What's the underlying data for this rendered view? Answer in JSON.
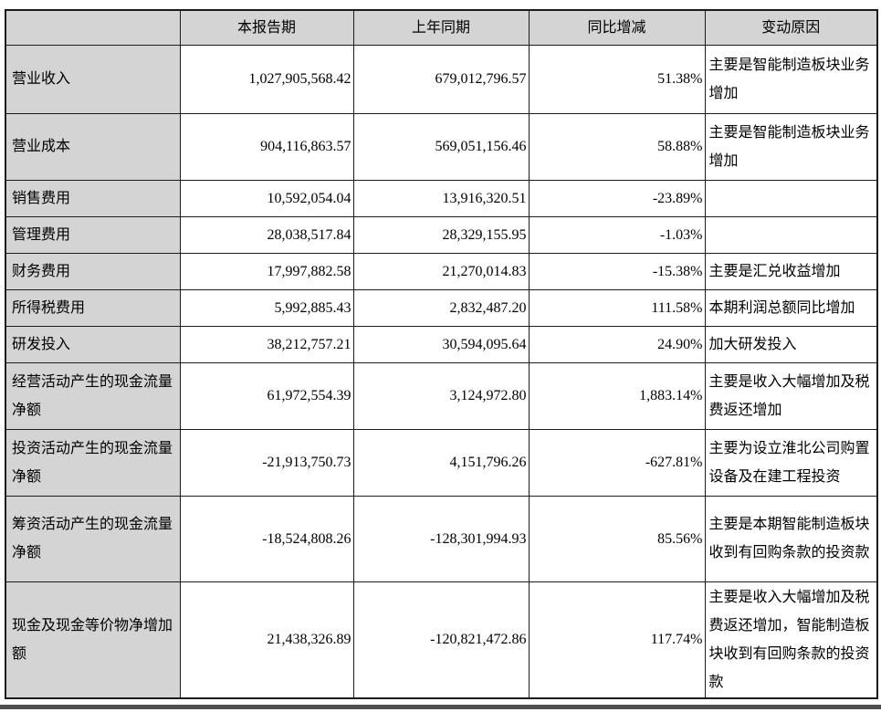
{
  "table": {
    "columns": [
      {
        "key": "label",
        "label": ""
      },
      {
        "key": "current",
        "label": "本报告期"
      },
      {
        "key": "prior",
        "label": "上年同期"
      },
      {
        "key": "change",
        "label": "同比增减"
      },
      {
        "key": "reason",
        "label": "变动原因"
      }
    ],
    "rows": [
      {
        "label": "营业收入",
        "current": "1,027,905,568.42",
        "prior": "679,012,796.57",
        "change": "51.38%",
        "reason": "主要是智能制造板块业务增加"
      },
      {
        "label": "营业成本",
        "current": "904,116,863.57",
        "prior": "569,051,156.46",
        "change": "58.88%",
        "reason": "主要是智能制造板块业务增加"
      },
      {
        "label": "销售费用",
        "current": "10,592,054.04",
        "prior": "13,916,320.51",
        "change": "-23.89%",
        "reason": ""
      },
      {
        "label": "管理费用",
        "current": "28,038,517.84",
        "prior": "28,329,155.95",
        "change": "-1.03%",
        "reason": ""
      },
      {
        "label": "财务费用",
        "current": "17,997,882.58",
        "prior": "21,270,014.83",
        "change": "-15.38%",
        "reason": "主要是汇兑收益增加"
      },
      {
        "label": "所得税费用",
        "current": "5,992,885.43",
        "prior": "2,832,487.20",
        "change": "111.58%",
        "reason": "本期利润总额同比增加"
      },
      {
        "label": "研发投入",
        "current": "38,212,757.21",
        "prior": "30,594,095.64",
        "change": "24.90%",
        "reason": "加大研发投入"
      },
      {
        "label": "经营活动产生的现金流量净额",
        "current": "61,972,554.39",
        "prior": "3,124,972.80",
        "change": "1,883.14%",
        "reason": "主要是收入大幅增加及税费返还增加"
      },
      {
        "label": "投资活动产生的现金流量净额",
        "current": "-21,913,750.73",
        "prior": "4,151,796.26",
        "change": "-627.81%",
        "reason": "主要为设立淮北公司购置设备及在建工程投资"
      },
      {
        "label": "筹资活动产生的现金流量净额",
        "current": "-18,524,808.26",
        "prior": "-128,301,994.93",
        "change": "85.56%",
        "reason": "主要是本期智能制造板块收到有回购条款的投资款"
      },
      {
        "label": "现金及现金等价物净增加额",
        "current": "21,438,326.89",
        "prior": "-120,821,472.86",
        "change": "117.74%",
        "reason": "主要是收入大幅增加及税费返还增加，智能制造板块收到有回购条款的投资款"
      }
    ],
    "colors": {
      "header_bg": "#d4d4d4",
      "label_column_bg": "#d4d4d4",
      "border": "#1c1c1c",
      "bottom_rule": "#4f4f4f"
    }
  }
}
